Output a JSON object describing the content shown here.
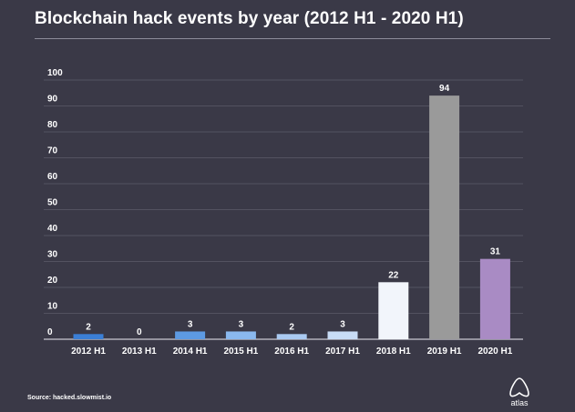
{
  "chart_data": {
    "type": "bar",
    "title": "Blockchain hack events by year (2012 H1 - 2020 H1)",
    "categories": [
      "2012 H1",
      "2013 H1",
      "2014 H1",
      "2015 H1",
      "2016 H1",
      "2017 H1",
      "2018 H1",
      "2019 H1",
      "2020 H1"
    ],
    "values": [
      2,
      0,
      3,
      3,
      2,
      3,
      22,
      94,
      31
    ],
    "bar_colors": [
      "#3b7fd6",
      "#3b7fd6",
      "#5d9ae2",
      "#8ab8ee",
      "#aacaf2",
      "#c8dcf6",
      "#f2f5fb",
      "#9a9a9a",
      "#a98bc4"
    ],
    "ylim": [
      0,
      100
    ],
    "yticks": [
      0,
      10,
      20,
      30,
      40,
      50,
      60,
      70,
      80,
      90,
      100
    ],
    "grid": true,
    "xlabel": "",
    "ylabel": ""
  },
  "footer": {
    "source": "Source: hacked.slowmist.io",
    "logo_text": "atlas"
  }
}
